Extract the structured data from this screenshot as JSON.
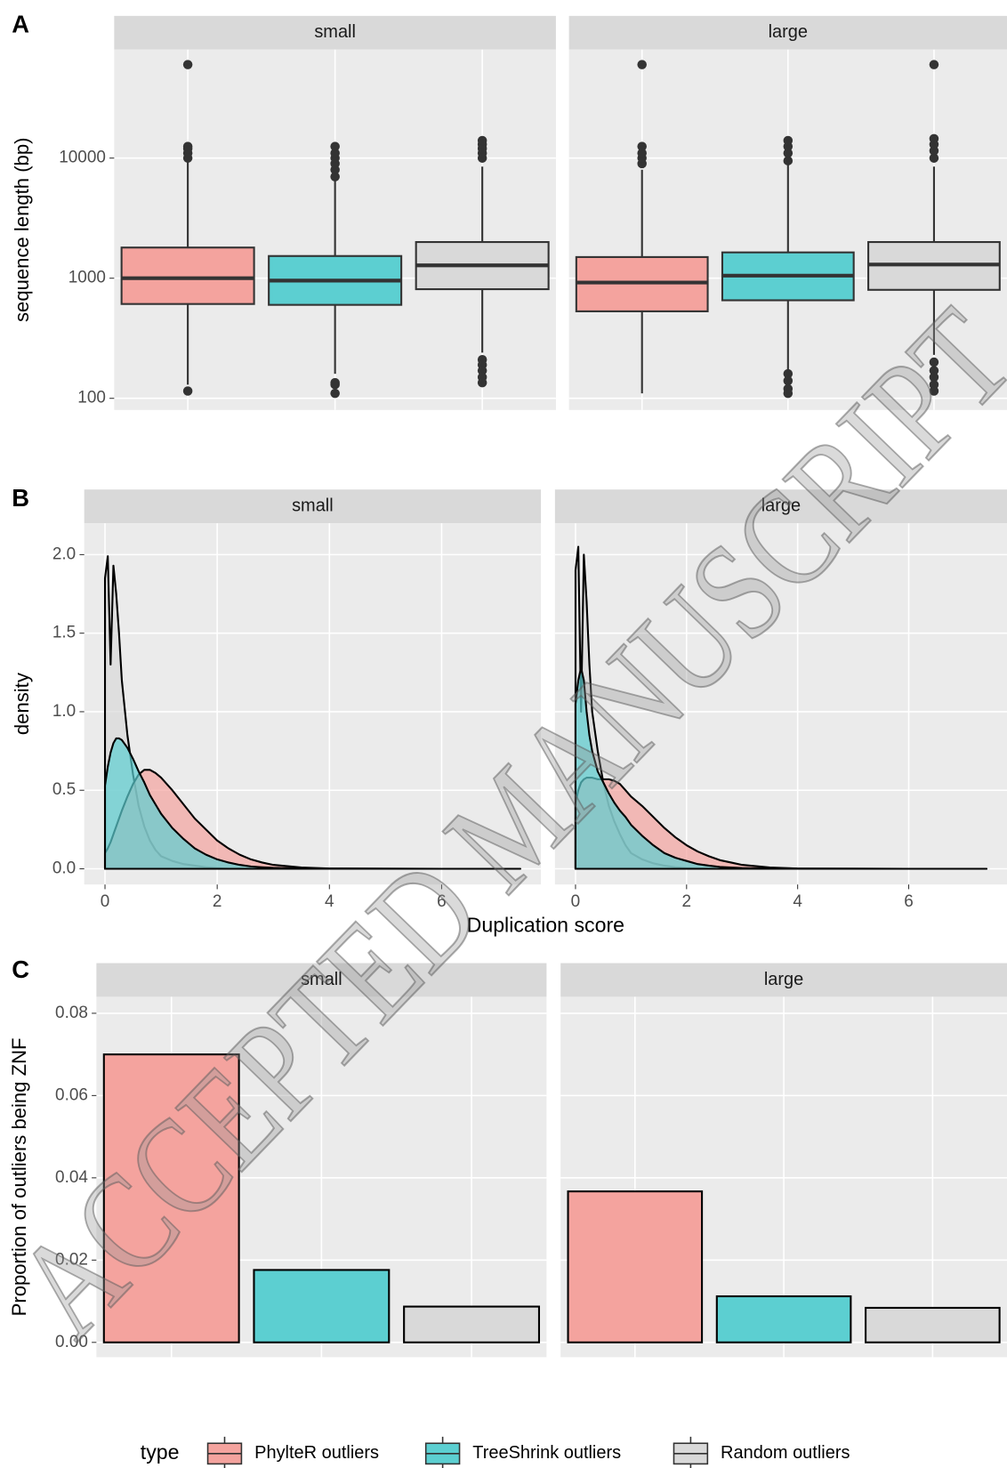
{
  "watermark": "ACCEPTED MANUSCRIPT",
  "legend": {
    "title": "type",
    "series": [
      {
        "name": "PhylteR outliers",
        "color": "#f4a39e"
      },
      {
        "name": "TreeShrink outliers",
        "color": "#5ccfd1"
      },
      {
        "name": "Random outliers",
        "color": "#d9d9d9"
      }
    ]
  },
  "chart_data": [
    {
      "type": "box",
      "label": "A",
      "facets": [
        "small",
        "large"
      ],
      "ylabel": "sequence length (bp)",
      "log_y": true,
      "ylim": [
        80,
        80000
      ],
      "yticks": [
        100,
        1000,
        10000
      ],
      "grid": true,
      "series": [
        {
          "values": [
            {
              "whisker_low": 130,
              "q1": 610,
              "median": 1000,
              "q3": 1800,
              "whisker_high": 9500,
              "outliers": [
                115,
                10000,
                11000,
                12000,
                12500,
                60000
              ]
            },
            {
              "whisker_low": 110,
              "q1": 530,
              "median": 920,
              "q3": 1500,
              "whisker_high": 8000,
              "outliers": [
                9000,
                10000,
                11000,
                12500,
                60000
              ]
            }
          ]
        },
        {
          "values": [
            {
              "whisker_low": 160,
              "q1": 600,
              "median": 955,
              "q3": 1530,
              "whisker_high": 6500,
              "outliers": [
                7000,
                8000,
                9000,
                10000,
                11000,
                12500,
                110,
                130,
                135
              ]
            },
            {
              "whisker_low": 170,
              "q1": 655,
              "median": 1050,
              "q3": 1640,
              "whisker_high": 9000,
              "outliers": [
                9500,
                11000,
                12500,
                14000,
                160,
                140,
                120,
                110
              ]
            }
          ]
        },
        {
          "values": [
            {
              "whisker_low": 240,
              "q1": 810,
              "median": 1280,
              "q3": 2000,
              "whisker_high": 8500,
              "outliers": [
                10000,
                11000,
                12000,
                13000,
                14000,
                210,
                190,
                170,
                150,
                135
              ]
            },
            {
              "whisker_low": 230,
              "q1": 800,
              "median": 1300,
              "q3": 2000,
              "whisker_high": 8500,
              "outliers": [
                10000,
                11500,
                13000,
                14500,
                60000,
                200,
                170,
                150,
                130,
                115
              ]
            }
          ]
        }
      ]
    },
    {
      "type": "density",
      "label": "B",
      "facets": [
        "small",
        "large"
      ],
      "xlabel": "Duplication score",
      "ylabel": "density",
      "xlim": [
        -0.37,
        7.77
      ],
      "xticks": [
        0,
        2,
        4,
        6
      ],
      "ylim": [
        -0.1,
        2.2
      ],
      "yticks": [
        {
          "value": 0,
          "label": "0.0"
        },
        0.5,
        {
          "value": 1,
          "label": "1.0"
        },
        1.5,
        {
          "value": 2,
          "label": "2.0"
        }
      ],
      "grid": true,
      "x": [
        0,
        0.05,
        0.1,
        0.15,
        0.2,
        0.25,
        0.3,
        0.4,
        0.5,
        0.6,
        0.7,
        0.8,
        0.9,
        1,
        1.2,
        1.4,
        1.6,
        1.8,
        2,
        2.2,
        2.4,
        2.6,
        2.8,
        3,
        3.5,
        4,
        5,
        6,
        7.4
      ],
      "series": [
        {
          "values": [
            [
              0.1,
              0.13,
              0.17,
              0.22,
              0.27,
              0.32,
              0.37,
              0.46,
              0.54,
              0.6,
              0.63,
              0.63,
              0.61,
              0.58,
              0.5,
              0.41,
              0.32,
              0.25,
              0.18,
              0.13,
              0.09,
              0.06,
              0.04,
              0.025,
              0.008,
              0.002,
              0.001,
              0,
              0
            ],
            [
              0.42,
              0.5,
              0.55,
              0.57,
              0.58,
              0.58,
              0.58,
              0.57,
              0.57,
              0.57,
              0.56,
              0.54,
              0.5,
              0.46,
              0.4,
              0.33,
              0.26,
              0.2,
              0.15,
              0.11,
              0.08,
              0.055,
              0.04,
              0.025,
              0.008,
              0.002,
              0.001,
              0,
              0
            ]
          ]
        },
        {
          "values": [
            [
              0.53,
              0.65,
              0.74,
              0.8,
              0.83,
              0.83,
              0.82,
              0.77,
              0.7,
              0.62,
              0.55,
              0.47,
              0.41,
              0.35,
              0.26,
              0.19,
              0.13,
              0.09,
              0.06,
              0.04,
              0.025,
              0.015,
              0.01,
              0.006,
              0.002,
              0.001,
              0,
              0,
              0
            ],
            [
              1.05,
              1.2,
              1.28,
              1.2,
              1,
              0.85,
              0.75,
              0.62,
              0.55,
              0.48,
              0.42,
              0.37,
              0.33,
              0.28,
              0.21,
              0.15,
              0.1,
              0.07,
              0.05,
              0.03,
              0.02,
              0.012,
              0.008,
              0.005,
              0.002,
              0.001,
              0,
              0,
              0
            ]
          ]
        },
        {
          "values": [
            [
              1.85,
              1.99,
              1.3,
              1.93,
              1.75,
              1.5,
              1.2,
              0.85,
              0.6,
              0.4,
              0.27,
              0.18,
              0.12,
              0.08,
              0.05,
              0.03,
              0.02,
              0.01,
              0.005,
              0,
              0,
              0,
              0,
              0,
              0,
              0,
              0,
              0,
              0
            ],
            [
              1.9,
              2.05,
              1,
              2,
              1.7,
              1.3,
              1,
              0.75,
              0.55,
              0.4,
              0.3,
              0.22,
              0.15,
              0.1,
              0.06,
              0.035,
              0.02,
              0.01,
              0.005,
              0.002,
              0,
              0,
              0,
              0,
              0,
              0,
              0,
              0,
              0
            ]
          ]
        }
      ]
    },
    {
      "type": "bar",
      "label": "C",
      "facets": [
        "small",
        "large"
      ],
      "ylabel": "Proportion of outliers being ZNF",
      "ylim": [
        -0.0036,
        0.084
      ],
      "yticks": [
        {
          "value": 0,
          "label": "0.00"
        },
        0.02,
        0.04,
        0.06,
        0.08
      ],
      "grid": true,
      "series": [
        {
          "values": [
            0.07,
            0.0367
          ]
        },
        {
          "values": [
            0.0176,
            0.0112
          ]
        },
        {
          "values": [
            0.0087,
            0.0084
          ]
        }
      ]
    }
  ]
}
